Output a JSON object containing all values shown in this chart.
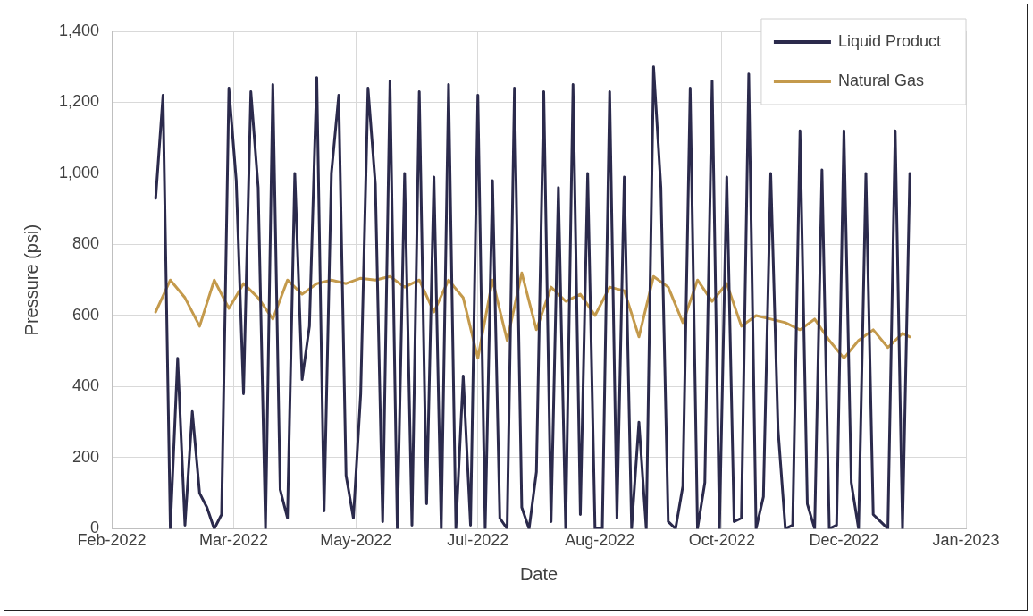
{
  "chart_data": {
    "type": "line",
    "xlabel": "Date",
    "ylabel": "Pressure (psi)",
    "xlim": [
      "2022-02-05",
      "2023-01-21"
    ],
    "xticks": [
      {
        "value": "2022-02-05",
        "label": "Feb-2022"
      },
      {
        "value": "2022-03-27",
        "label": "Mar-2022"
      },
      {
        "value": "2022-05-16",
        "label": "May-2022"
      },
      {
        "value": "2022-07-05",
        "label": "Jul-2022"
      },
      {
        "value": "2022-08-24",
        "label": "Aug-2022"
      },
      {
        "value": "2022-10-13",
        "label": "Oct-2022"
      },
      {
        "value": "2022-12-02",
        "label": "Dec-2022"
      },
      {
        "value": "2023-01-21",
        "label": "Jan-2023"
      }
    ],
    "ylim": [
      0,
      1400
    ],
    "yticks": [
      {
        "value": 0,
        "label": "0"
      },
      {
        "value": 200,
        "label": "200"
      },
      {
        "value": 400,
        "label": "400"
      },
      {
        "value": 600,
        "label": "600"
      },
      {
        "value": 800,
        "label": "800"
      },
      {
        "value": 1000,
        "label": "1,000"
      },
      {
        "value": 1200,
        "label": "1,200"
      },
      {
        "value": 1400,
        "label": "1,400"
      }
    ],
    "grid": true,
    "legend": "top right",
    "marker": "none",
    "line_style": "solid",
    "series": [
      {
        "name": "Liquid Product",
        "color": "#2b2a4c",
        "x": [
          "2022-02-23",
          "2022-02-26",
          "2022-03-01",
          "2022-03-04",
          "2022-03-07",
          "2022-03-10",
          "2022-03-13",
          "2022-03-16",
          "2022-03-19",
          "2022-03-22",
          "2022-03-25",
          "2022-03-28",
          "2022-03-31",
          "2022-04-03",
          "2022-04-06",
          "2022-04-09",
          "2022-04-12",
          "2022-04-15",
          "2022-04-18",
          "2022-04-21",
          "2022-04-24",
          "2022-04-27",
          "2022-04-30",
          "2022-05-03",
          "2022-05-06",
          "2022-05-09",
          "2022-05-12",
          "2022-05-15",
          "2022-05-18",
          "2022-05-21",
          "2022-05-24",
          "2022-05-27",
          "2022-05-30",
          "2022-06-02",
          "2022-06-05",
          "2022-06-08",
          "2022-06-11",
          "2022-06-14",
          "2022-06-17",
          "2022-06-20",
          "2022-06-23",
          "2022-06-26",
          "2022-06-29",
          "2022-07-02",
          "2022-07-05",
          "2022-07-08",
          "2022-07-11",
          "2022-07-14",
          "2022-07-17",
          "2022-07-20",
          "2022-07-23",
          "2022-07-26",
          "2022-07-29",
          "2022-08-01",
          "2022-08-04",
          "2022-08-07",
          "2022-08-10",
          "2022-08-13",
          "2022-08-16",
          "2022-08-19",
          "2022-08-22",
          "2022-08-25",
          "2022-08-28",
          "2022-08-31",
          "2022-09-03",
          "2022-09-06",
          "2022-09-09",
          "2022-09-12",
          "2022-09-15",
          "2022-09-18",
          "2022-09-21",
          "2022-09-24",
          "2022-09-27",
          "2022-09-30",
          "2022-10-03",
          "2022-10-06",
          "2022-10-09",
          "2022-10-12",
          "2022-10-15",
          "2022-10-18",
          "2022-10-21",
          "2022-10-24",
          "2022-10-27",
          "2022-10-30",
          "2022-11-02",
          "2022-11-05",
          "2022-11-08",
          "2022-11-11",
          "2022-11-14",
          "2022-11-17",
          "2022-11-20",
          "2022-11-23",
          "2022-11-26",
          "2022-11-29",
          "2022-12-02",
          "2022-12-05",
          "2022-12-08",
          "2022-12-11",
          "2022-12-14",
          "2022-12-17",
          "2022-12-20",
          "2022-12-23",
          "2022-12-26",
          "2022-12-29"
        ],
        "values": [
          930,
          1220,
          0,
          480,
          10,
          330,
          100,
          60,
          0,
          40,
          1240,
          980,
          380,
          1230,
          960,
          0,
          1250,
          110,
          30,
          1000,
          420,
          570,
          1270,
          50,
          1000,
          1220,
          150,
          30,
          380,
          1240,
          970,
          20,
          1260,
          0,
          1000,
          10,
          1230,
          70,
          990,
          0,
          1250,
          0,
          430,
          10,
          1220,
          0,
          980,
          30,
          0,
          1240,
          60,
          0,
          160,
          1230,
          20,
          960,
          0,
          1250,
          40,
          1000,
          0,
          0,
          1230,
          30,
          990,
          0,
          300,
          0,
          1300,
          960,
          20,
          0,
          120,
          1240,
          0,
          130,
          1260,
          0,
          990,
          20,
          30,
          1280,
          0,
          90,
          1000,
          280,
          0,
          10,
          1120,
          70,
          0,
          1010,
          0,
          10,
          1120,
          130,
          0,
          1000,
          40,
          20,
          0,
          1120,
          0,
          1000
        ]
      },
      {
        "name": "Natural Gas",
        "color": "#c49a4c",
        "x": [
          "2022-02-23",
          "2022-03-01",
          "2022-03-07",
          "2022-03-13",
          "2022-03-19",
          "2022-03-25",
          "2022-03-31",
          "2022-04-06",
          "2022-04-12",
          "2022-04-18",
          "2022-04-24",
          "2022-04-30",
          "2022-05-06",
          "2022-05-12",
          "2022-05-18",
          "2022-05-24",
          "2022-05-30",
          "2022-06-05",
          "2022-06-11",
          "2022-06-17",
          "2022-06-23",
          "2022-06-29",
          "2022-07-05",
          "2022-07-11",
          "2022-07-17",
          "2022-07-23",
          "2022-07-29",
          "2022-08-04",
          "2022-08-10",
          "2022-08-16",
          "2022-08-22",
          "2022-08-28",
          "2022-09-03",
          "2022-09-09",
          "2022-09-15",
          "2022-09-21",
          "2022-09-27",
          "2022-10-03",
          "2022-10-09",
          "2022-10-15",
          "2022-10-21",
          "2022-10-27",
          "2022-11-02",
          "2022-11-08",
          "2022-11-14",
          "2022-11-20",
          "2022-11-26",
          "2022-12-02",
          "2022-12-08",
          "2022-12-14",
          "2022-12-20",
          "2022-12-26",
          "2022-12-29"
        ],
        "values": [
          610,
          700,
          650,
          570,
          700,
          620,
          690,
          650,
          590,
          700,
          660,
          690,
          700,
          690,
          705,
          700,
          710,
          680,
          700,
          610,
          700,
          650,
          480,
          700,
          530,
          720,
          560,
          680,
          640,
          660,
          600,
          680,
          670,
          540,
          710,
          680,
          580,
          700,
          640,
          690,
          570,
          600,
          590,
          580,
          560,
          590,
          530,
          480,
          530,
          560,
          510,
          550,
          540
        ]
      }
    ]
  }
}
